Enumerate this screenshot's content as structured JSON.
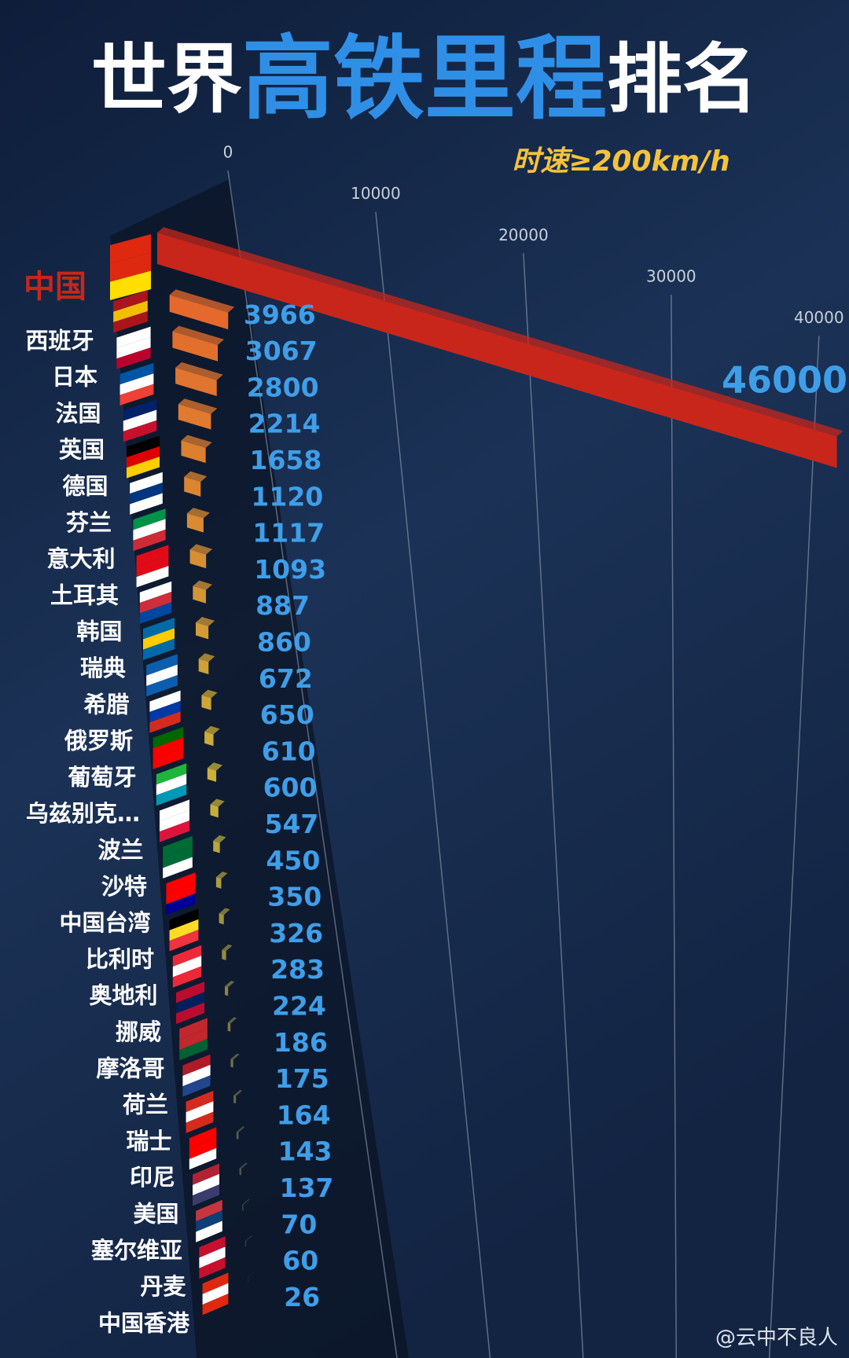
{
  "chart_data": {
    "type": "bar3d",
    "title_segments": [
      "世界",
      "高铁里程",
      "排名"
    ],
    "subtitle": "时速≥200km/h",
    "watermark": "@云中不良人",
    "categories": [
      "中国",
      "西班牙",
      "日本",
      "法国",
      "英国",
      "德国",
      "芬兰",
      "意大利",
      "土耳其",
      "韩国",
      "瑞典",
      "希腊",
      "俄罗斯",
      "葡萄牙",
      "乌兹别克…",
      "波兰",
      "沙特",
      "中国台湾",
      "比利时",
      "奥地利",
      "挪威",
      "摩洛哥",
      "荷兰",
      "瑞士",
      "印尼",
      "美国",
      "塞尔维亚",
      "丹麦",
      "中国香港"
    ],
    "values": [
      46000,
      3966,
      3067,
      2800,
      2214,
      1658,
      1120,
      1117,
      1093,
      887,
      860,
      672,
      650,
      610,
      600,
      547,
      450,
      350,
      326,
      283,
      224,
      186,
      175,
      164,
      143,
      137,
      70,
      60,
      26
    ],
    "xlim": [
      0,
      41500
    ],
    "xticks": [
      0,
      10000,
      20000,
      30000,
      40000
    ],
    "grid": true,
    "highlight_color": "#c8261b",
    "bar_colors": [
      "#e5692c",
      "#c9b43a",
      "#2b3a55"
    ],
    "label_color": "#3f9ee8"
  }
}
